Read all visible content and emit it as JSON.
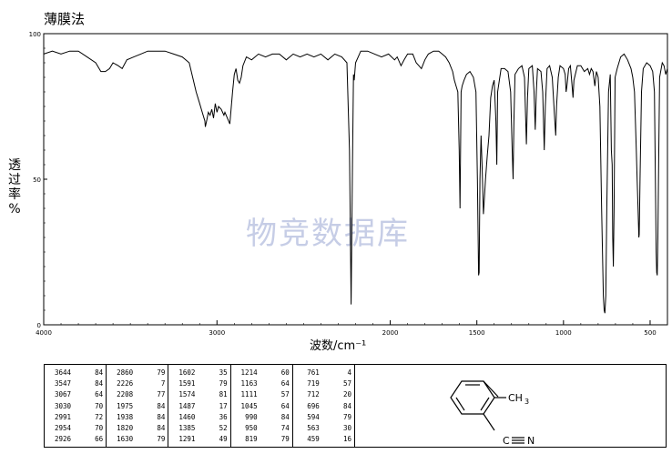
{
  "chart_data": {
    "type": "line",
    "title": "薄膜法",
    "ylabel": "透过率%",
    "xlabel": "波数/cm⁻¹",
    "xlim": [
      4000,
      400
    ],
    "ylim": [
      0,
      100
    ],
    "x_ticks": [
      4000,
      3000,
      2000,
      1500,
      1000,
      500
    ],
    "y_ticks": [
      0,
      50,
      100
    ],
    "watermark": "物竞数据库",
    "grid": false,
    "series": [
      {
        "points": [
          [
            4000,
            93
          ],
          [
            3950,
            94
          ],
          [
            3900,
            93
          ],
          [
            3850,
            94
          ],
          [
            3800,
            94
          ],
          [
            3750,
            92
          ],
          [
            3700,
            90
          ],
          [
            3670,
            87
          ],
          [
            3644,
            87
          ],
          [
            3620,
            88
          ],
          [
            3600,
            90
          ],
          [
            3570,
            89
          ],
          [
            3547,
            88
          ],
          [
            3520,
            91
          ],
          [
            3480,
            92
          ],
          [
            3440,
            93
          ],
          [
            3400,
            94
          ],
          [
            3350,
            94
          ],
          [
            3300,
            94
          ],
          [
            3250,
            93
          ],
          [
            3200,
            92
          ],
          [
            3160,
            90
          ],
          [
            3140,
            85
          ],
          [
            3120,
            80
          ],
          [
            3100,
            76
          ],
          [
            3085,
            73
          ],
          [
            3070,
            70
          ],
          [
            3067,
            68
          ],
          [
            3060,
            70
          ],
          [
            3050,
            73
          ],
          [
            3040,
            72
          ],
          [
            3030,
            74
          ],
          [
            3020,
            71
          ],
          [
            3010,
            76
          ],
          [
            3000,
            73
          ],
          [
            2991,
            75
          ],
          [
            2975,
            74
          ],
          [
            2960,
            72
          ],
          [
            2954,
            73
          ],
          [
            2940,
            71
          ],
          [
            2926,
            69
          ],
          [
            2910,
            80
          ],
          [
            2900,
            86
          ],
          [
            2890,
            88
          ],
          [
            2880,
            84
          ],
          [
            2870,
            83
          ],
          [
            2860,
            85
          ],
          [
            2850,
            89
          ],
          [
            2830,
            92
          ],
          [
            2800,
            91
          ],
          [
            2760,
            93
          ],
          [
            2720,
            92
          ],
          [
            2680,
            93
          ],
          [
            2640,
            93
          ],
          [
            2600,
            91
          ],
          [
            2560,
            93
          ],
          [
            2520,
            92
          ],
          [
            2480,
            93
          ],
          [
            2440,
            92
          ],
          [
            2400,
            93
          ],
          [
            2360,
            91
          ],
          [
            2320,
            93
          ],
          [
            2280,
            92
          ],
          [
            2250,
            90
          ],
          [
            2235,
            60
          ],
          [
            2226,
            7
          ],
          [
            2218,
            55
          ],
          [
            2212,
            86
          ],
          [
            2208,
            84
          ],
          [
            2200,
            90
          ],
          [
            2170,
            94
          ],
          [
            2130,
            94
          ],
          [
            2090,
            93
          ],
          [
            2050,
            92
          ],
          [
            2010,
            93
          ],
          [
            1975,
            91
          ],
          [
            1960,
            92
          ],
          [
            1938,
            89
          ],
          [
            1920,
            91
          ],
          [
            1900,
            93
          ],
          [
            1870,
            93
          ],
          [
            1850,
            90
          ],
          [
            1835,
            89
          ],
          [
            1820,
            88
          ],
          [
            1800,
            91
          ],
          [
            1780,
            93
          ],
          [
            1750,
            94
          ],
          [
            1720,
            94
          ],
          [
            1700,
            93
          ],
          [
            1680,
            92
          ],
          [
            1660,
            90
          ],
          [
            1640,
            87
          ],
          [
            1630,
            84
          ],
          [
            1620,
            82
          ],
          [
            1610,
            80
          ],
          [
            1602,
            60
          ],
          [
            1597,
            40
          ],
          [
            1594,
            60
          ],
          [
            1591,
            80
          ],
          [
            1585,
            82
          ],
          [
            1574,
            84
          ],
          [
            1560,
            86
          ],
          [
            1540,
            87
          ],
          [
            1520,
            85
          ],
          [
            1505,
            80
          ],
          [
            1497,
            50
          ],
          [
            1490,
            17
          ],
          [
            1487,
            18
          ],
          [
            1482,
            50
          ],
          [
            1476,
            65
          ],
          [
            1470,
            55
          ],
          [
            1462,
            38
          ],
          [
            1460,
            40
          ],
          [
            1450,
            50
          ],
          [
            1440,
            58
          ],
          [
            1430,
            65
          ],
          [
            1420,
            78
          ],
          [
            1410,
            82
          ],
          [
            1400,
            84
          ],
          [
            1390,
            70
          ],
          [
            1385,
            55
          ],
          [
            1380,
            80
          ],
          [
            1360,
            88
          ],
          [
            1340,
            88
          ],
          [
            1320,
            87
          ],
          [
            1305,
            80
          ],
          [
            1296,
            60
          ],
          [
            1291,
            50
          ],
          [
            1286,
            70
          ],
          [
            1280,
            86
          ],
          [
            1260,
            88
          ],
          [
            1240,
            89
          ],
          [
            1225,
            85
          ],
          [
            1214,
            62
          ],
          [
            1208,
            78
          ],
          [
            1200,
            88
          ],
          [
            1180,
            89
          ],
          [
            1170,
            80
          ],
          [
            1163,
            67
          ],
          [
            1157,
            80
          ],
          [
            1150,
            88
          ],
          [
            1130,
            87
          ],
          [
            1120,
            80
          ],
          [
            1111,
            60
          ],
          [
            1105,
            75
          ],
          [
            1095,
            88
          ],
          [
            1080,
            89
          ],
          [
            1065,
            85
          ],
          [
            1050,
            70
          ],
          [
            1045,
            65
          ],
          [
            1040,
            75
          ],
          [
            1030,
            85
          ],
          [
            1020,
            89
          ],
          [
            1000,
            88
          ],
          [
            990,
            86
          ],
          [
            985,
            80
          ],
          [
            980,
            82
          ],
          [
            970,
            88
          ],
          [
            960,
            89
          ],
          [
            950,
            82
          ],
          [
            945,
            78
          ],
          [
            940,
            84
          ],
          [
            920,
            89
          ],
          [
            900,
            89
          ],
          [
            880,
            87
          ],
          [
            860,
            88
          ],
          [
            850,
            86
          ],
          [
            840,
            88
          ],
          [
            830,
            87
          ],
          [
            819,
            82
          ],
          [
            810,
            87
          ],
          [
            800,
            85
          ],
          [
            790,
            75
          ],
          [
            780,
            40
          ],
          [
            770,
            10
          ],
          [
            765,
            5
          ],
          [
            761,
            4
          ],
          [
            756,
            10
          ],
          [
            750,
            40
          ],
          [
            740,
            80
          ],
          [
            730,
            86
          ],
          [
            724,
            60
          ],
          [
            719,
            55
          ],
          [
            716,
            30
          ],
          [
            712,
            20
          ],
          [
            708,
            40
          ],
          [
            702,
            85
          ],
          [
            690,
            88
          ],
          [
            680,
            90
          ],
          [
            670,
            92
          ],
          [
            650,
            93
          ],
          [
            630,
            91
          ],
          [
            610,
            88
          ],
          [
            600,
            85
          ],
          [
            590,
            80
          ],
          [
            585,
            70
          ],
          [
            580,
            60
          ],
          [
            575,
            50
          ],
          [
            570,
            40
          ],
          [
            565,
            30
          ],
          [
            563,
            31
          ],
          [
            558,
            50
          ],
          [
            550,
            80
          ],
          [
            540,
            88
          ],
          [
            520,
            90
          ],
          [
            500,
            89
          ],
          [
            485,
            87
          ],
          [
            475,
            80
          ],
          [
            468,
            40
          ],
          [
            465,
            25
          ],
          [
            462,
            18
          ],
          [
            459,
            17
          ],
          [
            455,
            30
          ],
          [
            450,
            60
          ],
          [
            445,
            85
          ],
          [
            430,
            90
          ],
          [
            420,
            89
          ],
          [
            410,
            86
          ],
          [
            400,
            88
          ]
        ]
      }
    ]
  },
  "peak_table": {
    "columns": [
      [
        [
          "3644",
          "84"
        ],
        [
          "3547",
          "84"
        ],
        [
          "3067",
          "64"
        ],
        [
          "3030",
          "70"
        ],
        [
          "2991",
          "72"
        ],
        [
          "2954",
          "70"
        ],
        [
          "2926",
          "66"
        ]
      ],
      [
        [
          "2860",
          "79"
        ],
        [
          "2226",
          "7"
        ],
        [
          "2208",
          "77"
        ],
        [
          "1975",
          "84"
        ],
        [
          "1938",
          "84"
        ],
        [
          "1820",
          "84"
        ],
        [
          "1630",
          "79"
        ]
      ],
      [
        [
          "1602",
          "35"
        ],
        [
          "1591",
          "79"
        ],
        [
          "1574",
          "81"
        ],
        [
          "1487",
          "17"
        ],
        [
          "1460",
          "36"
        ],
        [
          "1385",
          "52"
        ],
        [
          "1291",
          "49"
        ]
      ],
      [
        [
          "1214",
          "60"
        ],
        [
          "1163",
          "64"
        ],
        [
          "1111",
          "57"
        ],
        [
          "1045",
          "64"
        ],
        [
          "990",
          "84"
        ],
        [
          "950",
          "74"
        ],
        [
          "819",
          "79"
        ]
      ],
      [
        [
          "761",
          "4"
        ],
        [
          "719",
          "57"
        ],
        [
          "712",
          "20"
        ],
        [
          "696",
          "84"
        ],
        [
          "594",
          "79"
        ],
        [
          "563",
          "30"
        ],
        [
          "459",
          "16"
        ]
      ]
    ]
  },
  "structure": {
    "methyl_label": "CH",
    "methyl_sub": "3",
    "nitrile_c": "C",
    "nitrile_n": "N"
  }
}
